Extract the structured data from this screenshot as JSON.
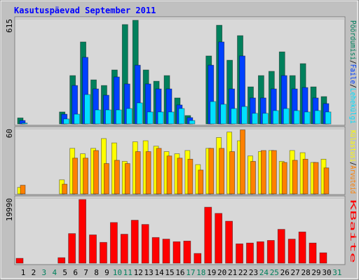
{
  "title": "Kasutuspäevad September 2011",
  "legend_separator": "/",
  "chart_data": [
    {
      "type": "bar",
      "ylim": [
        0,
        615
      ],
      "yticks": [
        615
      ],
      "series": [
        {
          "name": "Pöördumisi",
          "color": "#00805c",
          "values": [
            35,
            0,
            0,
            0,
            70,
            283,
            480,
            258,
            225,
            316,
            582,
            607,
            316,
            250,
            283,
            152,
            49,
            0,
            398,
            578,
            373,
            517,
            217,
            283,
            308,
            422,
            283,
            353,
            217,
            160,
            0
          ]
        },
        {
          "name": "Faile",
          "color": "#0040ff",
          "values": [
            20,
            0,
            0,
            0,
            57,
            225,
            390,
            205,
            168,
            275,
            234,
            344,
            234,
            205,
            205,
            111,
            37,
            0,
            344,
            480,
            205,
            398,
            152,
            152,
            205,
            283,
            205,
            213,
            152,
            119,
            0
          ]
        },
        {
          "name": "Lehekülgi",
          "color": "#00e0ff",
          "values": [
            5,
            0,
            0,
            0,
            29,
            57,
            172,
            82,
            82,
            82,
            90,
            123,
            70,
            70,
            70,
            90,
            20,
            0,
            131,
            115,
            90,
            102,
            62,
            62,
            78,
            90,
            78,
            70,
            78,
            70,
            0
          ]
        }
      ]
    },
    {
      "type": "bar",
      "ylim": [
        0,
        60
      ],
      "yticks": [
        60
      ],
      "series": [
        {
          "name": "Külastusi",
          "color": "#ffff00",
          "values": [
            6,
            0,
            0,
            0,
            13,
            42,
            37,
            42,
            51,
            47,
            30,
            48,
            49,
            44,
            39,
            37,
            40,
            27,
            42,
            52,
            57,
            49,
            35,
            39,
            40,
            30,
            40,
            38,
            29,
            32,
            0
          ]
        },
        {
          "name": "Arvuteid",
          "color": "#ff8000",
          "values": [
            8,
            0,
            0,
            0,
            9,
            33,
            33,
            40,
            28,
            31,
            28,
            39,
            39,
            42,
            35,
            33,
            32,
            22,
            42,
            42,
            39,
            59,
            30,
            40,
            40,
            29,
            31,
            32,
            29,
            24,
            0
          ]
        }
      ]
    },
    {
      "type": "bar",
      "ylim": [
        0,
        19990
      ],
      "yticks": [
        19990
      ],
      "categories": [
        "1",
        "2",
        "3",
        "4",
        "5",
        "6",
        "7",
        "8",
        "9",
        "10",
        "11",
        "12",
        "13",
        "14",
        "15",
        "16",
        "17",
        "18",
        "19",
        "20",
        "21",
        "22",
        "23",
        "24",
        "25",
        "26",
        "27",
        "28",
        "29",
        "30",
        "31"
      ],
      "category_colors": [
        "#000000",
        "#000000",
        "#00805c",
        "#00805c",
        "#000000",
        "#000000",
        "#000000",
        "#000000",
        "#000000",
        "#00805c",
        "#00805c",
        "#000000",
        "#000000",
        "#000000",
        "#000000",
        "#000000",
        "#00805c",
        "#00805c",
        "#000000",
        "#000000",
        "#000000",
        "#000000",
        "#000000",
        "#00805c",
        "#00805c",
        "#000000",
        "#000000",
        "#000000",
        "#000000",
        "#000000",
        "#00805c"
      ],
      "series": [
        {
          "name": "KBaite",
          "color": "#ff0000",
          "values": [
            1500,
            0,
            0,
            0,
            1700,
            9100,
            19570,
            8700,
            6400,
            12500,
            8900,
            13200,
            11900,
            7900,
            7400,
            6600,
            6800,
            3000,
            17200,
            15300,
            12900,
            5950,
            6200,
            6600,
            7000,
            10400,
            7400,
            9600,
            6200,
            3200,
            0
          ]
        }
      ]
    }
  ]
}
